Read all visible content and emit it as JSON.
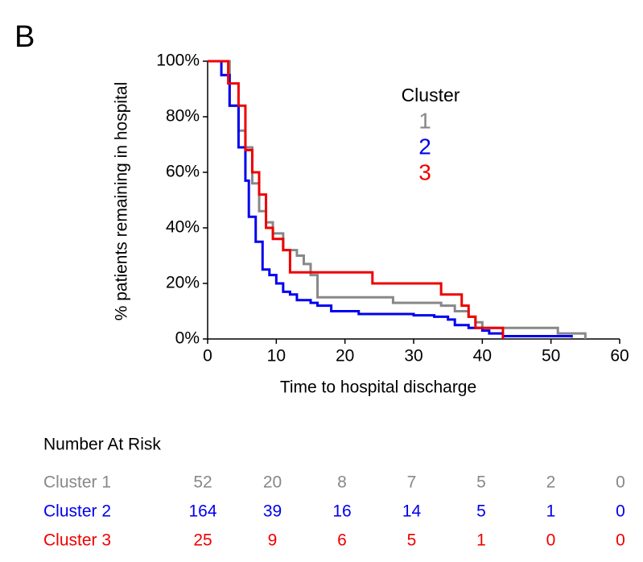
{
  "chart_data": {
    "type": "step",
    "panel_label": "B",
    "x_label": "Time to hospital discharge",
    "y_label": "% patients remaining in hospital",
    "legend_title": "Cluster",
    "xlim": [
      0,
      60
    ],
    "xticks": [
      0,
      10,
      20,
      30,
      40,
      50,
      60
    ],
    "ylim": [
      0,
      100
    ],
    "yticks": [
      {
        "value": 0,
        "label": "0%"
      },
      {
        "value": 20,
        "label": "20%"
      },
      {
        "value": 40,
        "label": "40%"
      },
      {
        "value": 60,
        "label": "60%"
      },
      {
        "value": 80,
        "label": "80%"
      },
      {
        "value": 100,
        "label": "100%"
      }
    ],
    "series": [
      {
        "name": "1",
        "color": "#888888",
        "x": [
          0,
          3.2,
          4.5,
          5.5,
          6.5,
          7.5,
          8.5,
          9.5,
          11,
          13,
          14,
          15,
          16,
          27,
          34,
          36,
          38,
          39,
          40,
          51,
          55
        ],
        "values": [
          100,
          84,
          75,
          69,
          56,
          46,
          42,
          38,
          32,
          30,
          27,
          23,
          15,
          13,
          12,
          10,
          8,
          6,
          4,
          2,
          0
        ]
      },
      {
        "name": "2",
        "color": "#0000ee",
        "x": [
          0,
          2,
          3.2,
          4.5,
          5.5,
          6,
          7,
          8,
          9,
          10,
          11,
          12,
          13,
          15,
          16,
          18,
          22,
          30,
          33,
          35,
          36,
          38,
          40,
          41,
          43,
          53
        ],
        "values": [
          100,
          95,
          84,
          69,
          57,
          44,
          35,
          25,
          23,
          20,
          17,
          16,
          14,
          13,
          12,
          10,
          9,
          8.5,
          8,
          7,
          5,
          4,
          3,
          2,
          1,
          0.5
        ]
      },
      {
        "name": "3",
        "color": "#ee0000",
        "x": [
          0,
          3,
          4.5,
          5.5,
          6.5,
          7.5,
          8.5,
          9.5,
          11,
          12,
          24,
          34,
          37,
          38,
          39,
          43
        ],
        "values": [
          100,
          92,
          84,
          68,
          60,
          52,
          40,
          36,
          32,
          24,
          20,
          16,
          12,
          8,
          4,
          0
        ]
      }
    ]
  },
  "risk_table": {
    "title": "Number At Risk",
    "rows": [
      {
        "label": "Cluster 1",
        "color": "#888888",
        "counts": [
          52,
          20,
          8,
          7,
          5,
          2,
          0
        ]
      },
      {
        "label": "Cluster 2",
        "color": "#0000ee",
        "counts": [
          164,
          39,
          16,
          14,
          5,
          1,
          0
        ]
      },
      {
        "label": "Cluster 3",
        "color": "#ee0000",
        "counts": [
          25,
          9,
          6,
          5,
          1,
          0,
          0
        ]
      }
    ]
  }
}
